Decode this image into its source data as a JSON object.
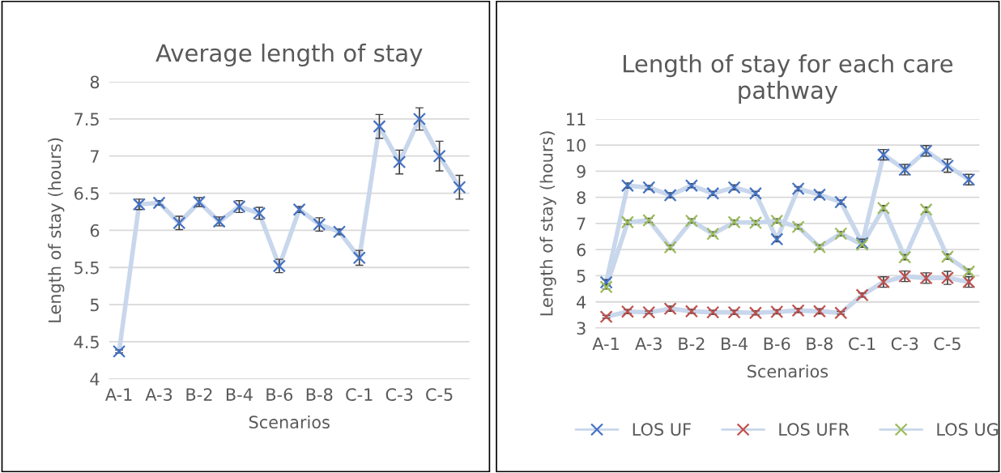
{
  "chart_data": [
    {
      "type": "line",
      "title": "Average length of stay",
      "xlabel": "Scenarios",
      "ylabel": "Length of stay (hours)",
      "categories": [
        "A-1",
        null,
        "A-3",
        null,
        "B-2",
        null,
        "B-4",
        null,
        "B-6",
        null,
        "B-8",
        null,
        "C-1",
        null,
        "C-3",
        null,
        "C-5",
        null
      ],
      "series": [
        {
          "color": "#4472c4",
          "values": [
            4.37,
            6.35,
            6.37,
            6.1,
            6.38,
            6.12,
            6.32,
            6.23,
            5.52,
            6.28,
            6.08,
            5.98,
            5.63,
            7.4,
            6.92,
            7.5,
            7.0,
            6.58
          ],
          "errors": [
            0.02,
            0.07,
            0.03,
            0.09,
            0.06,
            0.06,
            0.08,
            0.08,
            0.09,
            0.04,
            0.09,
            0.04,
            0.1,
            0.16,
            0.16,
            0.15,
            0.2,
            0.16
          ]
        }
      ],
      "ylim": [
        4,
        8
      ],
      "yticks": [
        4,
        4.5,
        5,
        5.5,
        6,
        6.5,
        7,
        7.5,
        8
      ],
      "grid": "y",
      "marker": "cross",
      "line_style": "solid"
    },
    {
      "type": "line",
      "title": "Length of stay for each care\npathway",
      "xlabel": "Scenarios",
      "ylabel": "Length of stay (hours)",
      "categories": [
        "A-1",
        null,
        "A-3",
        null,
        "B-2",
        null,
        "B-4",
        null,
        "B-6",
        null,
        "B-8",
        null,
        "C-1",
        null,
        "C-3",
        null,
        "C-5",
        null
      ],
      "series": [
        {
          "name": "LOS UF",
          "color": "#4472c4",
          "values": [
            4.75,
            8.45,
            8.38,
            8.08,
            8.45,
            8.15,
            8.38,
            8.15,
            6.4,
            8.33,
            8.1,
            7.82,
            6.25,
            9.63,
            9.06,
            9.78,
            9.21,
            8.68
          ],
          "errors": [
            0.1,
            0.1,
            0.08,
            0.1,
            0.08,
            0.08,
            0.1,
            0.08,
            0.1,
            0.08,
            0.1,
            0.08,
            0.15,
            0.2,
            0.2,
            0.2,
            0.25,
            0.2
          ]
        },
        {
          "name": "LOS UFR",
          "color": "#c0504d",
          "values": [
            3.43,
            3.63,
            3.6,
            3.74,
            3.64,
            3.6,
            3.6,
            3.58,
            3.62,
            3.67,
            3.64,
            3.58,
            4.26,
            4.76,
            4.98,
            4.91,
            4.92,
            4.76
          ],
          "errors": [
            0.05,
            0.08,
            0.05,
            0.1,
            0.08,
            0.08,
            0.08,
            0.08,
            0.08,
            0.08,
            0.1,
            0.05,
            0.08,
            0.2,
            0.2,
            0.2,
            0.25,
            0.2
          ]
        },
        {
          "name": "LOS UG",
          "color": "#9bbb59",
          "values": [
            4.57,
            7.05,
            7.12,
            6.09,
            7.1,
            6.6,
            7.05,
            7.03,
            7.1,
            6.87,
            6.1,
            6.61,
            6.19,
            7.59,
            5.71,
            7.53,
            5.73,
            5.16
          ],
          "errors": [
            0.08,
            0.08,
            0.08,
            0.08,
            0.08,
            0.08,
            0.08,
            0.08,
            0.08,
            0.08,
            0.08,
            0.08,
            0.1,
            0.1,
            0.1,
            0.1,
            0.1,
            0.1
          ]
        }
      ],
      "ylim": [
        3,
        11
      ],
      "yticks": [
        3,
        4,
        5,
        6,
        7,
        8,
        9,
        10,
        11
      ],
      "grid": "y",
      "legend": "bottom",
      "marker": "cross",
      "line_style": "solid"
    }
  ]
}
